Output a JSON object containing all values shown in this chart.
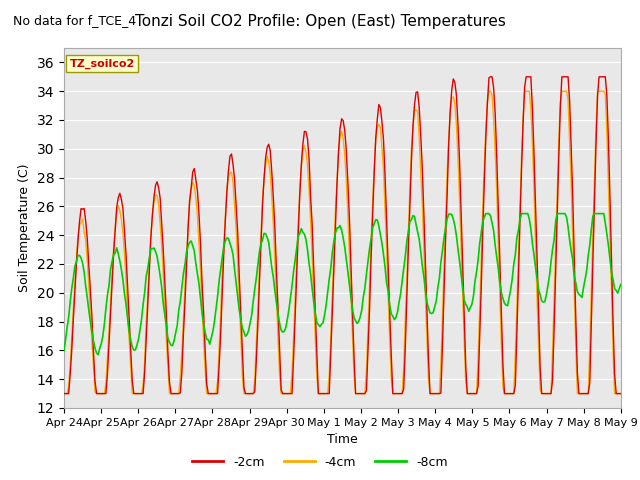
{
  "title": "Tonzi Soil CO2 Profile: Open (East) Temperatures",
  "subtitle": "No data for f_TCE_4",
  "ylabel": "Soil Temperature (C)",
  "xlabel": "Time",
  "legend_label": "TZ_soilco2",
  "ylim": [
    12,
    37
  ],
  "yticks": [
    12,
    14,
    16,
    18,
    20,
    22,
    24,
    26,
    28,
    30,
    32,
    34,
    36
  ],
  "bg_color": "#e8e8e8",
  "line_colors": {
    "-2cm": "#dd0000",
    "-4cm": "#ffaa00",
    "-8cm": "#00cc00"
  },
  "x_labels": [
    "Apr 24",
    "Apr 25",
    "Apr 26",
    "Apr 27",
    "Apr 28",
    "Apr 29",
    "Apr 30",
    "May 1",
    "May 2",
    "May 3",
    "May 4",
    "May 5",
    "May 6",
    "May 7",
    "May 8",
    "May 9"
  ],
  "num_points": 360
}
